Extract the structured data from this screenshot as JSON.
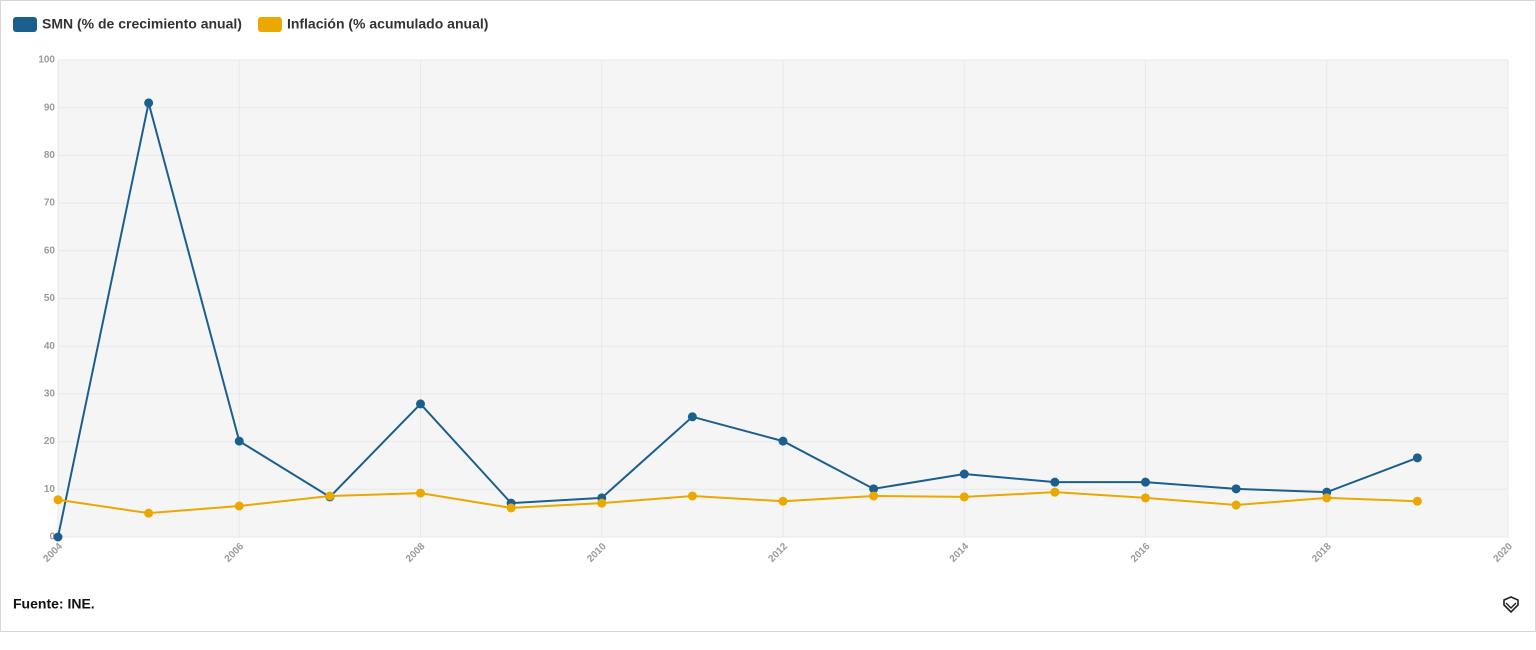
{
  "chart_data": {
    "type": "line",
    "source": "Fuente: INE.",
    "x": [
      2004,
      2005,
      2006,
      2007,
      2008,
      2009,
      2010,
      2011,
      2012,
      2013,
      2014,
      2015,
      2016,
      2017,
      2018,
      2019
    ],
    "series": [
      {
        "name": "SMN (% de crecimiento anual)",
        "color": "#1a5f8e",
        "values": [
          0,
          91,
          20.1,
          8.4,
          27.9,
          7.1,
          8.2,
          25.2,
          20.1,
          10.1,
          13.2,
          11.5,
          11.5,
          10.1,
          9.4,
          16.6
        ]
      },
      {
        "name": "Inflación (% acumulado anual)",
        "color": "#eaa800",
        "values": [
          7.8,
          5.0,
          6.5,
          8.6,
          9.2,
          6.1,
          7.1,
          8.6,
          7.5,
          8.6,
          8.4,
          9.4,
          8.2,
          6.7,
          8.2,
          7.5
        ]
      }
    ],
    "xlim": [
      2004,
      2020
    ],
    "xticks": [
      2004,
      2006,
      2008,
      2010,
      2012,
      2014,
      2016,
      2018,
      2020
    ],
    "ylim": [
      0,
      100
    ],
    "yticks": [
      0,
      10,
      20,
      30,
      40,
      50,
      60,
      70,
      80,
      90,
      100
    ],
    "grid": true
  }
}
